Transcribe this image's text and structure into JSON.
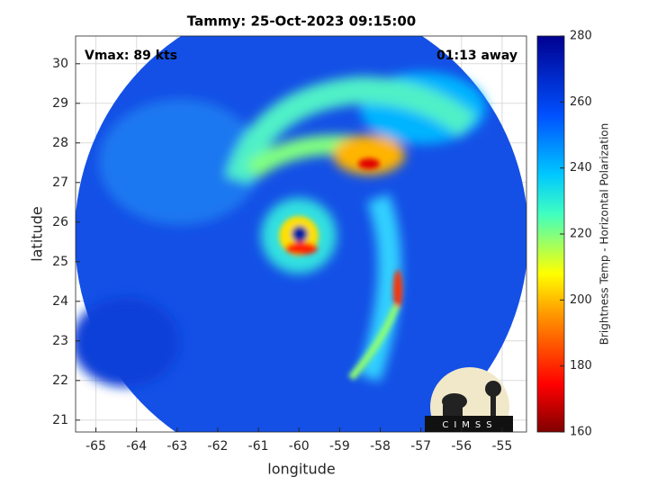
{
  "chart_data": {
    "type": "heatmap",
    "title": "Tammy: 25-Oct-2023 09:15:00",
    "annotations": [
      "Vmax: 89 kts",
      "01:13 away"
    ],
    "xlabel": "longitude",
    "ylabel": "latitude",
    "xlim": [
      -65.5,
      -54.4
    ],
    "ylim": [
      20.7,
      30.7
    ],
    "xticks": [
      -65,
      -64,
      -63,
      -62,
      -61,
      -60,
      -59,
      -58,
      -57,
      -56,
      -55
    ],
    "yticks": [
      21,
      22,
      23,
      24,
      25,
      26,
      27,
      28,
      29,
      30
    ],
    "grid": true,
    "colorbar": {
      "label": "Brightness Temp - Horizontal Polarization",
      "lim": [
        160,
        280
      ],
      "ticks": [
        160,
        180,
        200,
        220,
        240,
        260,
        280
      ]
    },
    "logo": "CIMSS"
  }
}
